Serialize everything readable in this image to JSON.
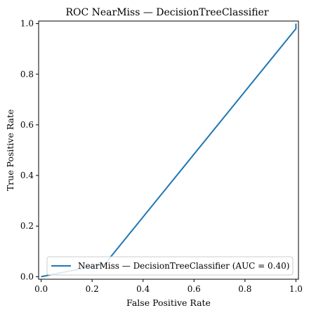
{
  "chart_data": {
    "type": "line",
    "title": "ROC NearMiss — DecisionTreeClassifier",
    "xlabel": "False Positive Rate",
    "ylabel": "True Positive Rate",
    "xlim": [
      -0.01,
      1.01
    ],
    "ylim": [
      -0.01,
      1.01
    ],
    "xticks": [
      0.0,
      0.2,
      0.4,
      0.6,
      0.8,
      1.0
    ],
    "yticks": [
      0.0,
      0.2,
      0.4,
      0.6,
      0.8,
      1.0
    ],
    "xtick_labels": [
      "0.0",
      "0.2",
      "0.4",
      "0.6",
      "0.8",
      "1.0"
    ],
    "ytick_labels": [
      "0.0",
      "0.2",
      "0.4",
      "0.6",
      "0.8",
      "1.0"
    ],
    "grid": false,
    "legend_position": "lower-right",
    "series": [
      {
        "name": "NearMiss — DecisionTreeClassifier (AUC = 0.40)",
        "color": "#1f77b4",
        "x": [
          0.0,
          0.25,
          1.0,
          1.0
        ],
        "y": [
          0.0,
          0.05,
          0.98,
          1.0
        ]
      }
    ]
  }
}
